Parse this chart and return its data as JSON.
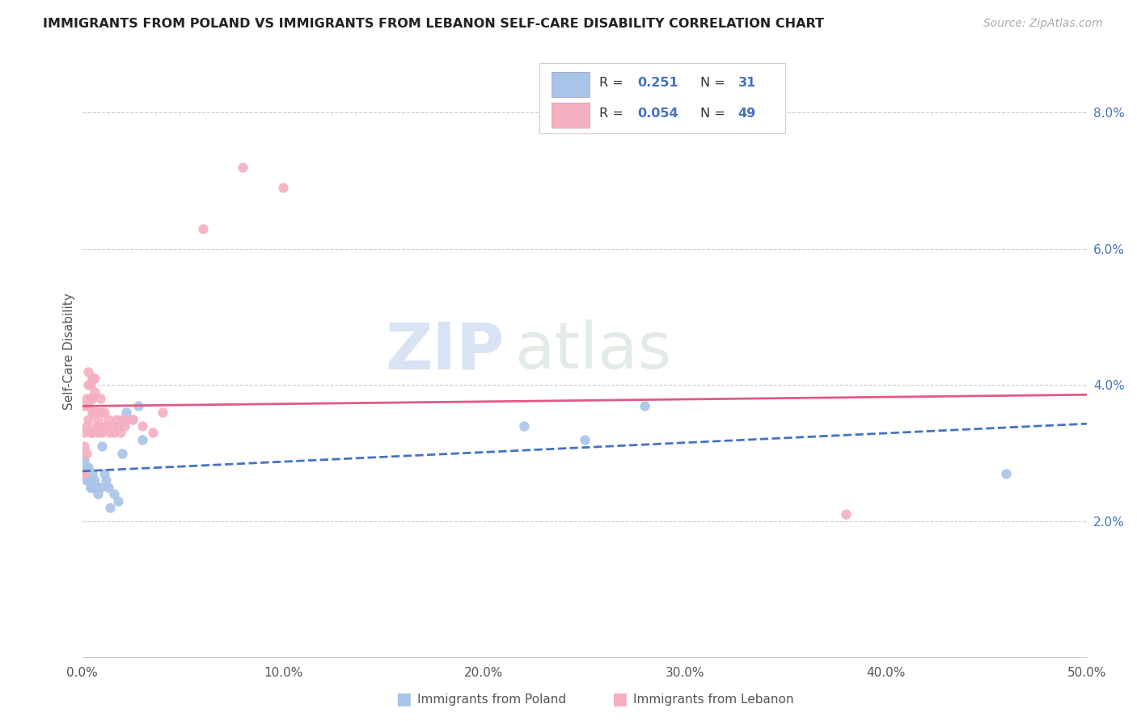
{
  "title": "IMMIGRANTS FROM POLAND VS IMMIGRANTS FROM LEBANON SELF-CARE DISABILITY CORRELATION CHART",
  "source": "Source: ZipAtlas.com",
  "ylabel": "Self-Care Disability",
  "xlim": [
    0.0,
    0.5
  ],
  "ylim": [
    0.0,
    0.09
  ],
  "xtick_positions": [
    0.0,
    0.1,
    0.2,
    0.3,
    0.4,
    0.5
  ],
  "xtick_labels": [
    "0.0%",
    "10.0%",
    "20.0%",
    "30.0%",
    "40.0%",
    "50.0%"
  ],
  "ytick_positions": [
    0.0,
    0.02,
    0.04,
    0.06,
    0.08
  ],
  "ytick_labels": [
    "",
    "2.0%",
    "4.0%",
    "6.0%",
    "8.0%"
  ],
  "poland_color": "#a8c4e8",
  "lebanon_color": "#f4afc0",
  "poland_line_color": "#4472c4",
  "lebanon_line_color": "#e05a82",
  "poland_R": 0.251,
  "poland_N": 31,
  "lebanon_R": 0.054,
  "lebanon_N": 49,
  "poland_x": [
    0.001,
    0.001,
    0.002,
    0.002,
    0.003,
    0.003,
    0.004,
    0.004,
    0.005,
    0.005,
    0.006,
    0.006,
    0.007,
    0.008,
    0.009,
    0.01,
    0.011,
    0.012,
    0.013,
    0.014,
    0.016,
    0.018,
    0.02,
    0.022,
    0.025,
    0.028,
    0.03,
    0.22,
    0.25,
    0.28,
    0.46
  ],
  "poland_y": [
    0.027,
    0.029,
    0.026,
    0.028,
    0.028,
    0.026,
    0.025,
    0.025,
    0.027,
    0.025,
    0.026,
    0.025,
    0.025,
    0.024,
    0.025,
    0.031,
    0.027,
    0.026,
    0.025,
    0.022,
    0.024,
    0.023,
    0.03,
    0.036,
    0.035,
    0.037,
    0.032,
    0.034,
    0.032,
    0.037,
    0.027
  ],
  "lebanon_x": [
    0.001,
    0.001,
    0.001,
    0.001,
    0.002,
    0.002,
    0.002,
    0.003,
    0.003,
    0.003,
    0.003,
    0.004,
    0.004,
    0.004,
    0.005,
    0.005,
    0.005,
    0.005,
    0.006,
    0.006,
    0.006,
    0.007,
    0.007,
    0.008,
    0.008,
    0.009,
    0.009,
    0.009,
    0.01,
    0.011,
    0.012,
    0.013,
    0.014,
    0.015,
    0.016,
    0.017,
    0.018,
    0.019,
    0.02,
    0.021,
    0.022,
    0.025,
    0.03,
    0.035,
    0.04,
    0.06,
    0.08,
    0.1,
    0.38
  ],
  "lebanon_y": [
    0.027,
    0.031,
    0.033,
    0.037,
    0.03,
    0.034,
    0.038,
    0.035,
    0.037,
    0.04,
    0.042,
    0.033,
    0.038,
    0.04,
    0.036,
    0.038,
    0.041,
    0.033,
    0.036,
    0.039,
    0.041,
    0.034,
    0.036,
    0.033,
    0.035,
    0.034,
    0.036,
    0.038,
    0.033,
    0.036,
    0.034,
    0.035,
    0.033,
    0.034,
    0.033,
    0.035,
    0.034,
    0.033,
    0.035,
    0.034,
    0.035,
    0.035,
    0.034,
    0.033,
    0.036,
    0.063,
    0.072,
    0.069,
    0.021
  ],
  "watermark_zip": "ZIP",
  "watermark_atlas": "atlas"
}
